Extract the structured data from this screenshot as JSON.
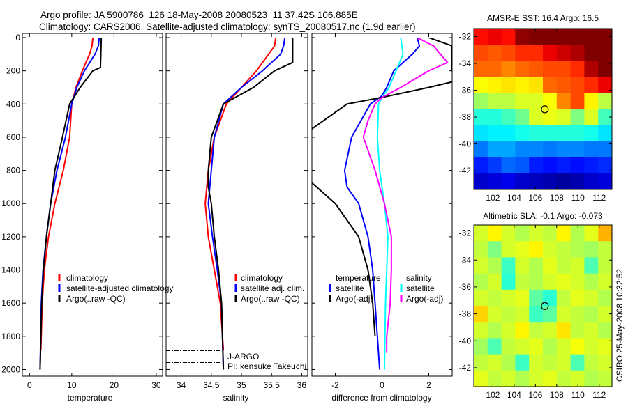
{
  "title_line1": "Argo profile: JA 5900786_126 18-May-2008 20080523_11 37.42S 106.885E",
  "title_line2": "Climatology: CARS2006. Satellite-adjusted climatology: synTS_20080517.nc (1.9d earlier)",
  "side_stamp": "CSIRO 25-May-2008 10:32:52",
  "colors": {
    "red": "#ff0000",
    "blue": "#0000ff",
    "black": "#000000",
    "cyan": "#00ffff",
    "magenta": "#ff00ff"
  },
  "chart_data": [
    {
      "type": "line",
      "xlabel": "temperature",
      "ylabel": "",
      "xlim": [
        -1.7,
        31.5
      ],
      "ylim": [
        0,
        2040
      ],
      "y_reversed": true,
      "xticks": [
        0,
        10,
        20,
        30
      ],
      "yticks": [
        0,
        200,
        400,
        600,
        800,
        1000,
        1200,
        1400,
        1600,
        1800,
        2000
      ],
      "legend": {
        "placement": "bottom-left",
        "entries": [
          "climatology",
          "satellite-adjusted climatology",
          "Argo(..raw -QC)"
        ]
      },
      "series": [
        {
          "name": "climatology",
          "color": "#ff0000",
          "depth": [
            0,
            50,
            100,
            200,
            300,
            400,
            600,
            800,
            1000,
            1200,
            1400,
            1600,
            1880
          ],
          "values": [
            15,
            14.8,
            14.2,
            12.5,
            11,
            10,
            9.5,
            8,
            6,
            4.5,
            3.5,
            3,
            2.7
          ]
        },
        {
          "name": "satellite-adjusted climatology",
          "color": "#0000ff",
          "depth": [
            0,
            50,
            100,
            200,
            300,
            400,
            600,
            800,
            1000,
            1200,
            1400,
            1600,
            2000
          ],
          "values": [
            16.5,
            16.3,
            15.5,
            13,
            11.2,
            10,
            8.5,
            6.5,
            5,
            4,
            3.2,
            2.8,
            2.5
          ]
        },
        {
          "name": "Argo(..raw -QC)",
          "color": "#000000",
          "depth": [
            0,
            180,
            200,
            300,
            400,
            600,
            800,
            1000,
            1200,
            1400,
            1600,
            2000
          ],
          "values": [
            17,
            16.8,
            15,
            12,
            9.5,
            7.8,
            6,
            5,
            4,
            3.3,
            2.9,
            2.5
          ]
        }
      ]
    },
    {
      "type": "line",
      "xlabel": "salinity",
      "xlim": [
        33.75,
        36.1
      ],
      "ylim": [
        0,
        2040
      ],
      "y_reversed": true,
      "xticks": [
        34,
        34.5,
        35,
        35.5,
        36
      ],
      "legend": {
        "placement": "bottom-right",
        "entries": [
          "climatology",
          "satellite adj. clim.",
          "Argo(..raw -QC)"
        ]
      },
      "annotations": [
        {
          "text": "J-ARGO",
          "depth": 1880
        },
        {
          "text": "PI: kensuke Takeuchi",
          "depth": 1950
        }
      ],
      "series": [
        {
          "name": "climatology",
          "color": "#ff0000",
          "depth": [
            0,
            50,
            100,
            200,
            300,
            400,
            600,
            800,
            1000,
            1200,
            1400,
            1600,
            1880
          ],
          "values": [
            35.57,
            35.55,
            35.45,
            35.25,
            35.0,
            34.75,
            34.55,
            34.45,
            34.4,
            34.45,
            34.55,
            34.65,
            34.7
          ]
        },
        {
          "name": "satellite adj. clim.",
          "color": "#0000ff",
          "depth": [
            0,
            50,
            100,
            200,
            300,
            400,
            600,
            800,
            1000,
            1200,
            1400,
            1600,
            2000
          ],
          "values": [
            35.72,
            35.7,
            35.65,
            35.35,
            35.0,
            34.7,
            34.55,
            34.5,
            34.45,
            34.52,
            34.6,
            34.67,
            34.7
          ]
        },
        {
          "name": "Argo(..raw -QC)",
          "color": "#000000",
          "depth": [
            0,
            150,
            200,
            300,
            400,
            600,
            800,
            900,
            1000,
            1200,
            1400,
            1600,
            2000
          ],
          "values": [
            35.85,
            35.85,
            35.55,
            35.2,
            34.7,
            34.5,
            34.45,
            34.45,
            34.5,
            34.55,
            34.62,
            34.67,
            34.7
          ]
        }
      ]
    },
    {
      "type": "line",
      "xlabel": "difference from climatology",
      "xlim": [
        -3,
        3
      ],
      "ylim": [
        0,
        2040
      ],
      "y_reversed": true,
      "xticks": [
        -2,
        0,
        2
      ],
      "zero_line": true,
      "legend": {
        "placement": "bottom",
        "groups": [
          {
            "title": "temperature",
            "entries": [
              "satellite",
              "Argo(-adj)"
            ]
          },
          {
            "title": "salinity",
            "entries": [
              "satellite",
              "Argo(-adj)"
            ]
          }
        ]
      },
      "series": [
        {
          "name": "temperature satellite",
          "color": "#0000ff",
          "depth": [
            0,
            50,
            100,
            200,
            300,
            350,
            400,
            600,
            800,
            900,
            1000,
            1200,
            1400,
            1600,
            2000
          ],
          "values": [
            1.5,
            1.6,
            1.3,
            0.5,
            0.2,
            0,
            -0.5,
            -1.3,
            -1.6,
            -1.5,
            -1.0,
            -0.6,
            -0.4,
            -0.3,
            -0.1
          ]
        },
        {
          "name": "temperature Argo(-adj)",
          "color": "#000000",
          "depth": [
            0,
            50,
            200,
            250,
            300,
            360,
            400,
            500,
            600,
            800,
            850,
            1000,
            1200,
            1400,
            1600,
            1800
          ],
          "values": [
            2,
            3,
            3,
            3.5,
            2,
            0,
            -1.5,
            -2.5,
            -3.5,
            -3.5,
            -3.2,
            -2,
            -1,
            -0.6,
            -0.4,
            -0.3
          ]
        },
        {
          "name": "salinity satellite",
          "color": "#00ffff",
          "depth": [
            0,
            100,
            200,
            300,
            360,
            400,
            600,
            800,
            1000,
            1200,
            1600,
            2000
          ],
          "values": [
            0.8,
            0.9,
            0.6,
            0.3,
            0,
            -0.15,
            -0.2,
            -0.1,
            0.1,
            0.25,
            0.15,
            0.1
          ]
        },
        {
          "name": "salinity Argo(-adj)",
          "color": "#ff00ff",
          "depth": [
            0,
            50,
            100,
            150,
            200,
            300,
            360,
            400,
            500,
            600,
            800,
            1000,
            1200,
            1400,
            1600,
            1800,
            1900
          ],
          "values": [
            1.5,
            2.2,
            2.5,
            2.8,
            2.0,
            0.8,
            0,
            -0.3,
            -0.6,
            -0.8,
            -0.3,
            0.1,
            0.4,
            0.4,
            0.35,
            0.2,
            0.2
          ]
        }
      ]
    },
    {
      "type": "heatmap",
      "title": "AMSR-E SST: 16.4 Argo: 16.5",
      "xlim": [
        100.2,
        113.2
      ],
      "ylim": [
        -43.4,
        -31.4
      ],
      "xticks": [
        102,
        104,
        106,
        108,
        110,
        112
      ],
      "yticks": [
        -32,
        -34,
        -36,
        -38,
        -40,
        -42
      ],
      "clim": [
        12.3,
        18.9
      ],
      "colormap": "jet",
      "marker": {
        "lon": 106.885,
        "lat": -37.42
      },
      "grid": [
        [
          18.0,
          18.2,
          18.0,
          18.8,
          19,
          19,
          19,
          19,
          19,
          19
        ],
        [
          17.6,
          17.5,
          17.6,
          17.8,
          17.8,
          18.2,
          18.4,
          18.6,
          19,
          19
        ],
        [
          17.4,
          17.4,
          17.2,
          17.4,
          17.5,
          17.6,
          17.6,
          17.8,
          18.6,
          19
        ],
        [
          16.4,
          16.5,
          16.6,
          16.5,
          16.6,
          17.4,
          17.5,
          17.6,
          17.8,
          18.2
        ],
        [
          15.8,
          16,
          16.0,
          16.2,
          16.2,
          16.4,
          17.2,
          17.6,
          16.5,
          16.0
        ],
        [
          15.0,
          15.0,
          15.2,
          15.5,
          16.2,
          16.3,
          16.2,
          15.6,
          16.2,
          15.2
        ],
        [
          14.6,
          14.7,
          14.7,
          14.9,
          15.0,
          15.0,
          15.0,
          15.0,
          14.9,
          14.6
        ],
        [
          13.9,
          14.2,
          14.2,
          14.0,
          14.0,
          13.9,
          14.0,
          14.0,
          13.9,
          13.9
        ],
        [
          13.3,
          13.5,
          13.8,
          13.7,
          13.3,
          13.2,
          13.3,
          13.2,
          13.3,
          13.4
        ],
        [
          12.8,
          12.9,
          13.0,
          12.8,
          12.7,
          12.6,
          12.5,
          12.6,
          12.8,
          12.9
        ]
      ]
    },
    {
      "type": "heatmap",
      "title": "Altimetric SLA: -0.1 Argo: -0.073",
      "xlim": [
        100.2,
        113.2
      ],
      "ylim": [
        -43.4,
        -31.4
      ],
      "xticks": [
        102,
        104,
        106,
        108,
        110,
        112
      ],
      "yticks": [
        -32,
        -34,
        -36,
        -38,
        -40,
        -42
      ],
      "clim": [
        -0.3,
        0.3
      ],
      "colormap": "jet",
      "marker": {
        "lon": 106.885,
        "lat": -37.42
      },
      "grid": [
        [
          0.05,
          0.08,
          0.05,
          0.03,
          0.05,
          0.04,
          0.08,
          0.03,
          0.06,
          0.12
        ],
        [
          0.04,
          0.0,
          0.05,
          0.06,
          0.08,
          0.05,
          0.04,
          0.03,
          0.02,
          0.04
        ],
        [
          0.05,
          0.03,
          -0.04,
          0.05,
          0.03,
          0.06,
          0.04,
          0.05,
          -0.03,
          0.04
        ],
        [
          0.03,
          0.05,
          -0.05,
          0.04,
          0.03,
          0.05,
          0.06,
          0.05,
          0.03,
          0.05
        ],
        [
          0.05,
          0.04,
          0.05,
          0.06,
          -0.02,
          -0.05,
          0.04,
          0.06,
          0.05,
          0.03
        ],
        [
          0.1,
          0.05,
          0.04,
          0.05,
          -0.04,
          -0.02,
          0.05,
          0.04,
          0.03,
          0.05
        ],
        [
          0.05,
          0.03,
          0.05,
          0.08,
          0.04,
          0.05,
          0.09,
          0.04,
          0.05,
          0.03
        ],
        [
          0.02,
          -0.03,
          0.04,
          0.05,
          0.06,
          0.03,
          0.05,
          0.07,
          0.05,
          0.06
        ],
        [
          0.04,
          0.05,
          0.03,
          -0.04,
          0.05,
          0.04,
          0.05,
          -0.03,
          0.04,
          0.05
        ],
        [
          0.06,
          0.04,
          0.05,
          0.03,
          0.05,
          0.06,
          0.04,
          0.05,
          0.03,
          0.04
        ]
      ]
    }
  ]
}
